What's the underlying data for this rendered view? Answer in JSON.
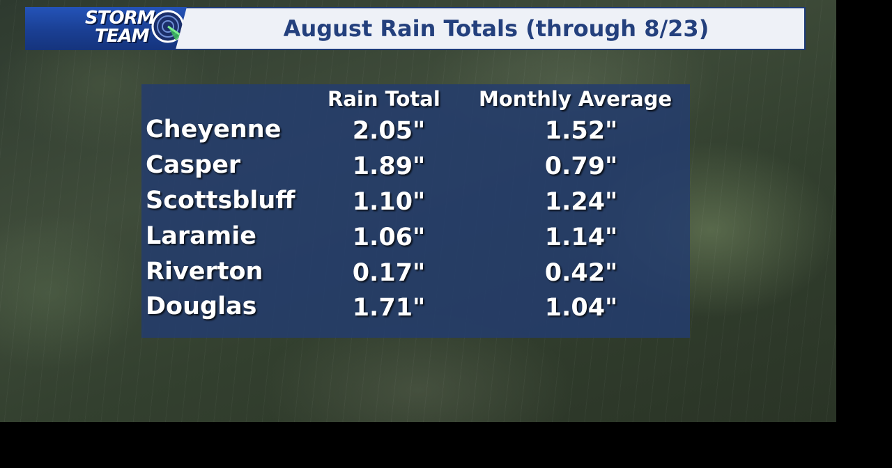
{
  "logo": {
    "line1": "STORM",
    "line2": "TEAM"
  },
  "title": "August Rain Totals (through 8/23)",
  "colors": {
    "header_bg": "#eef1f7",
    "title_text": "#24407d",
    "logo_blue": "#1a3f93",
    "panel_bg": "#243c6e",
    "text": "#ffffff"
  },
  "chart_data": {
    "type": "table",
    "title": "August Rain Totals (through 8/23)",
    "columns": [
      "Rain Total",
      "Monthly Average"
    ],
    "rows": [
      {
        "city": "Cheyenne",
        "rain_total": "2.05\"",
        "monthly_average": "1.52\""
      },
      {
        "city": "Casper",
        "rain_total": "1.89\"",
        "monthly_average": "0.79\""
      },
      {
        "city": "Scottsbluff",
        "rain_total": "1.10\"",
        "monthly_average": "1.24\""
      },
      {
        "city": "Laramie",
        "rain_total": "1.06\"",
        "monthly_average": "1.14\""
      },
      {
        "city": "Riverton",
        "rain_total": "0.17\"",
        "monthly_average": "0.42\""
      },
      {
        "city": "Douglas",
        "rain_total": "1.71\"",
        "monthly_average": "1.04\""
      }
    ]
  }
}
